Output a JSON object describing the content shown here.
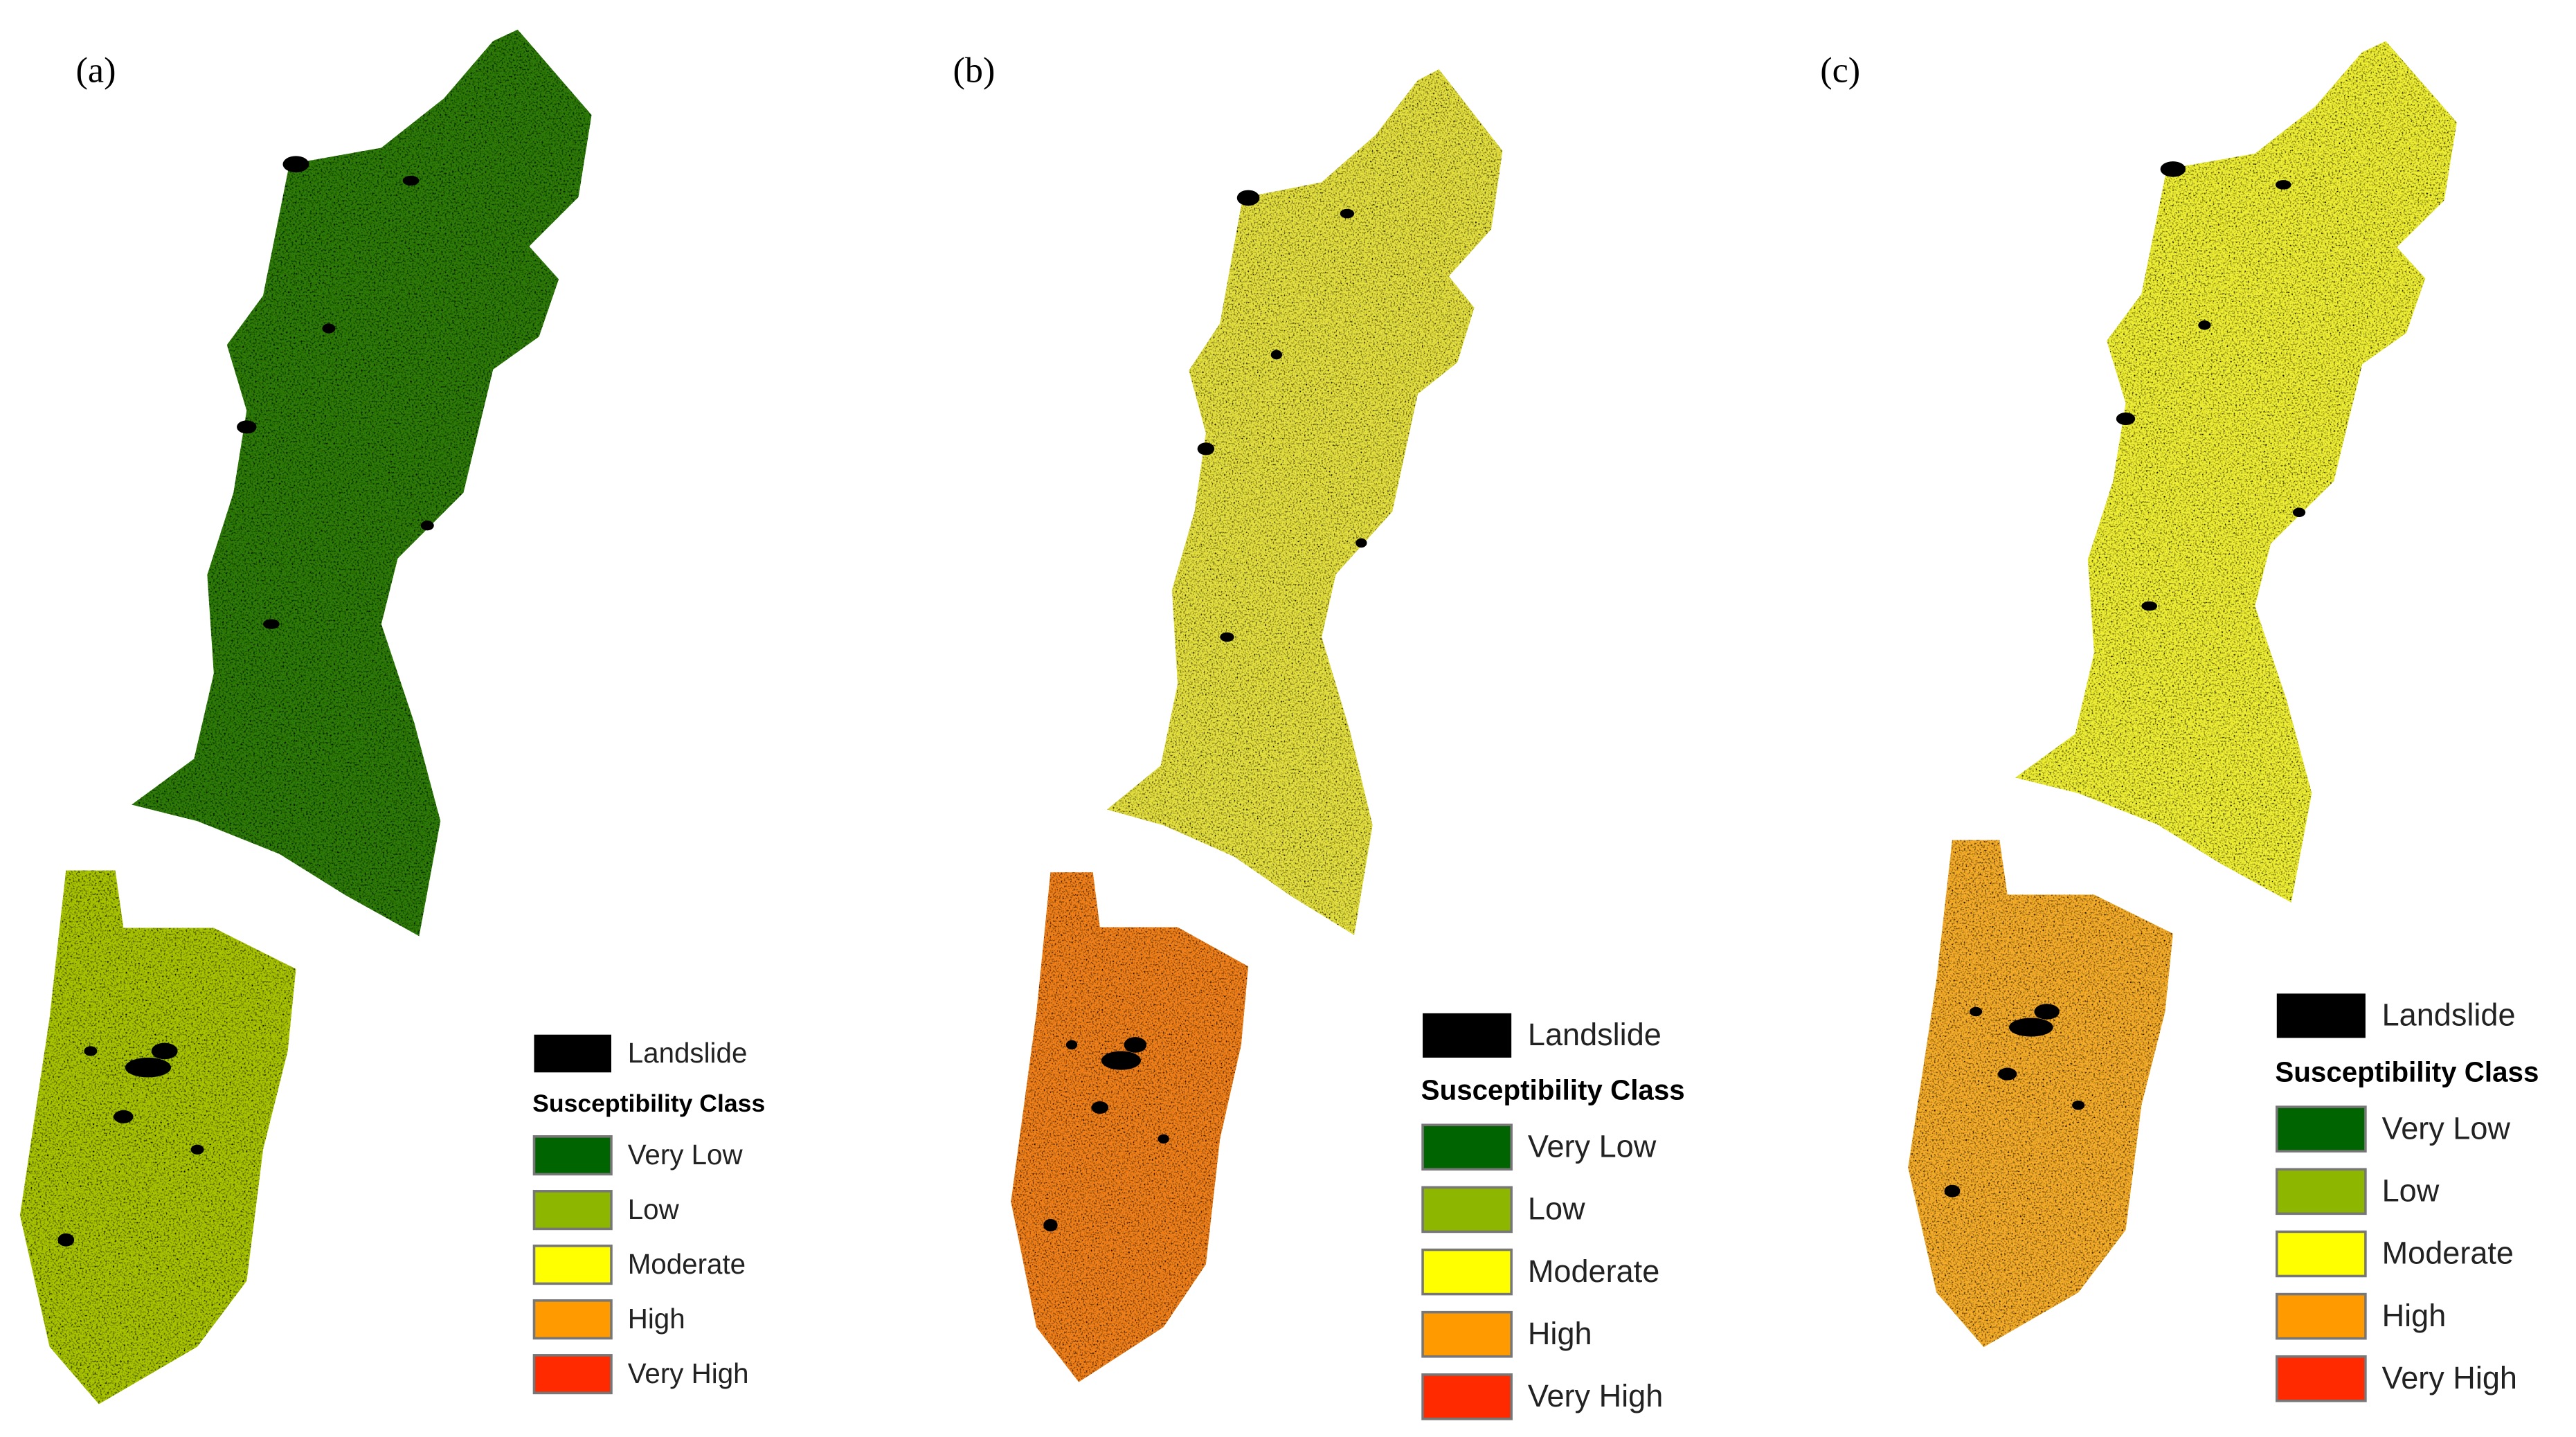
{
  "panels": [
    {
      "label": "(a)"
    },
    {
      "label": "(b)"
    },
    {
      "label": "(c)"
    }
  ],
  "legend": {
    "landslide": "Landslide",
    "landslide_color": "#000000",
    "title": "Susceptibility Class",
    "classes": [
      {
        "name": "Very Low",
        "color": "#006400"
      },
      {
        "name": "Low",
        "color": "#8db600"
      },
      {
        "name": "Moderate",
        "color": "#ffff00"
      },
      {
        "name": "High",
        "color": "#ff9a00"
      },
      {
        "name": "Very High",
        "color": "#ff2a00"
      }
    ]
  }
}
